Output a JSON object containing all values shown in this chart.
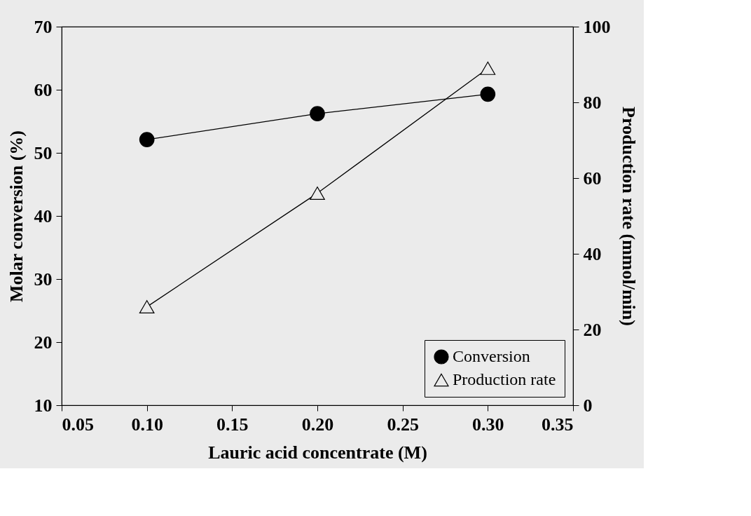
{
  "chart_data": {
    "type": "line",
    "xlabel": "Lauric acid concentrate (M)",
    "ylabel": "Molar conversion (%)",
    "y2label": "Production rate (mmol/min)",
    "x": [
      0.1,
      0.2,
      0.3
    ],
    "series": [
      {
        "name": "Conversion",
        "color": "#000000",
        "marker": "circle",
        "values": [
          52.1,
          56.2,
          59.3
        ]
      },
      {
        "name": "Production rate",
        "color": "#000000",
        "marker": "triangle",
        "axis": "y2",
        "values": [
          26,
          56,
          89
        ]
      }
    ],
    "xlim": [
      0.05,
      0.35
    ],
    "xticks": [
      {
        "value": 0.05,
        "label": "0.05"
      },
      {
        "value": 0.1,
        "label": "0.10"
      },
      {
        "value": 0.15,
        "label": "0.15"
      },
      {
        "value": 0.2,
        "label": "0.20"
      },
      {
        "value": 0.25,
        "label": "0.25"
      },
      {
        "value": 0.3,
        "label": "0.30"
      },
      {
        "value": 0.35,
        "label": "0.35"
      }
    ],
    "ylim": [
      10,
      70
    ],
    "yticks": [
      10,
      20,
      30,
      40,
      50,
      60,
      70
    ],
    "y2lim": [
      0,
      100
    ],
    "y2ticks": [
      0,
      20,
      40,
      60,
      80,
      100
    ],
    "grid": false,
    "legend": "bottom right",
    "line_style": "solid"
  }
}
